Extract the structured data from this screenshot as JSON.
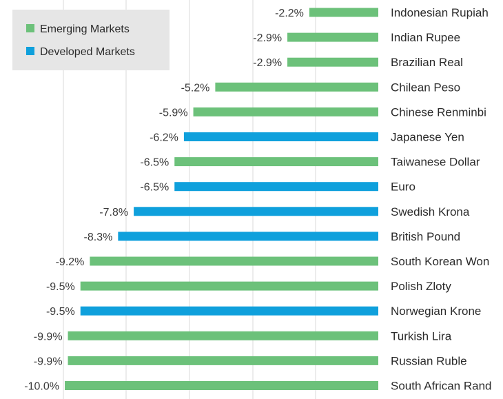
{
  "chart_data": {
    "type": "bar",
    "orientation": "horizontal",
    "categories": [
      "Indonesian Rupiah",
      "Indian Rupee",
      "Brazilian Real",
      "Chilean Peso",
      "Chinese Renminbi",
      "Japanese Yen",
      "Taiwanese Dollar",
      "Euro",
      "Swedish Krona",
      "British Pound",
      "South Korean Won",
      "Polish Zloty",
      "Norwegian Krone",
      "Turkish Lira",
      "Russian Ruble",
      "South African Rand"
    ],
    "values": [
      -2.2,
      -2.9,
      -2.9,
      -5.2,
      -5.9,
      -6.2,
      -6.5,
      -6.5,
      -7.8,
      -8.3,
      -9.2,
      -9.5,
      -9.5,
      -9.9,
      -9.9,
      -10.0
    ],
    "value_labels": [
      "-2.2%",
      "-2.9%",
      "-2.9%",
      "-5.2%",
      "-5.9%",
      "-6.2%",
      "-6.5%",
      "-6.5%",
      "-7.8%",
      "-8.3%",
      "-9.2%",
      "-9.5%",
      "-9.5%",
      "-9.9%",
      "-9.9%",
      "-10.0%"
    ],
    "groups": [
      "Emerging Markets",
      "Emerging Markets",
      "Emerging Markets",
      "Emerging Markets",
      "Emerging Markets",
      "Developed Markets",
      "Emerging Markets",
      "Developed Markets",
      "Developed Markets",
      "Developed Markets",
      "Emerging Markets",
      "Emerging Markets",
      "Developed Markets",
      "Emerging Markets",
      "Emerging Markets",
      "Emerging Markets"
    ],
    "legend": [
      {
        "name": "Emerging Markets",
        "color": "#6cc17a"
      },
      {
        "name": "Developed Markets",
        "color": "#0fa0dc"
      }
    ],
    "legend_position": "top-left",
    "xlim": [
      -10,
      0
    ],
    "grid": true,
    "title": "",
    "xlabel": "",
    "ylabel": ""
  }
}
